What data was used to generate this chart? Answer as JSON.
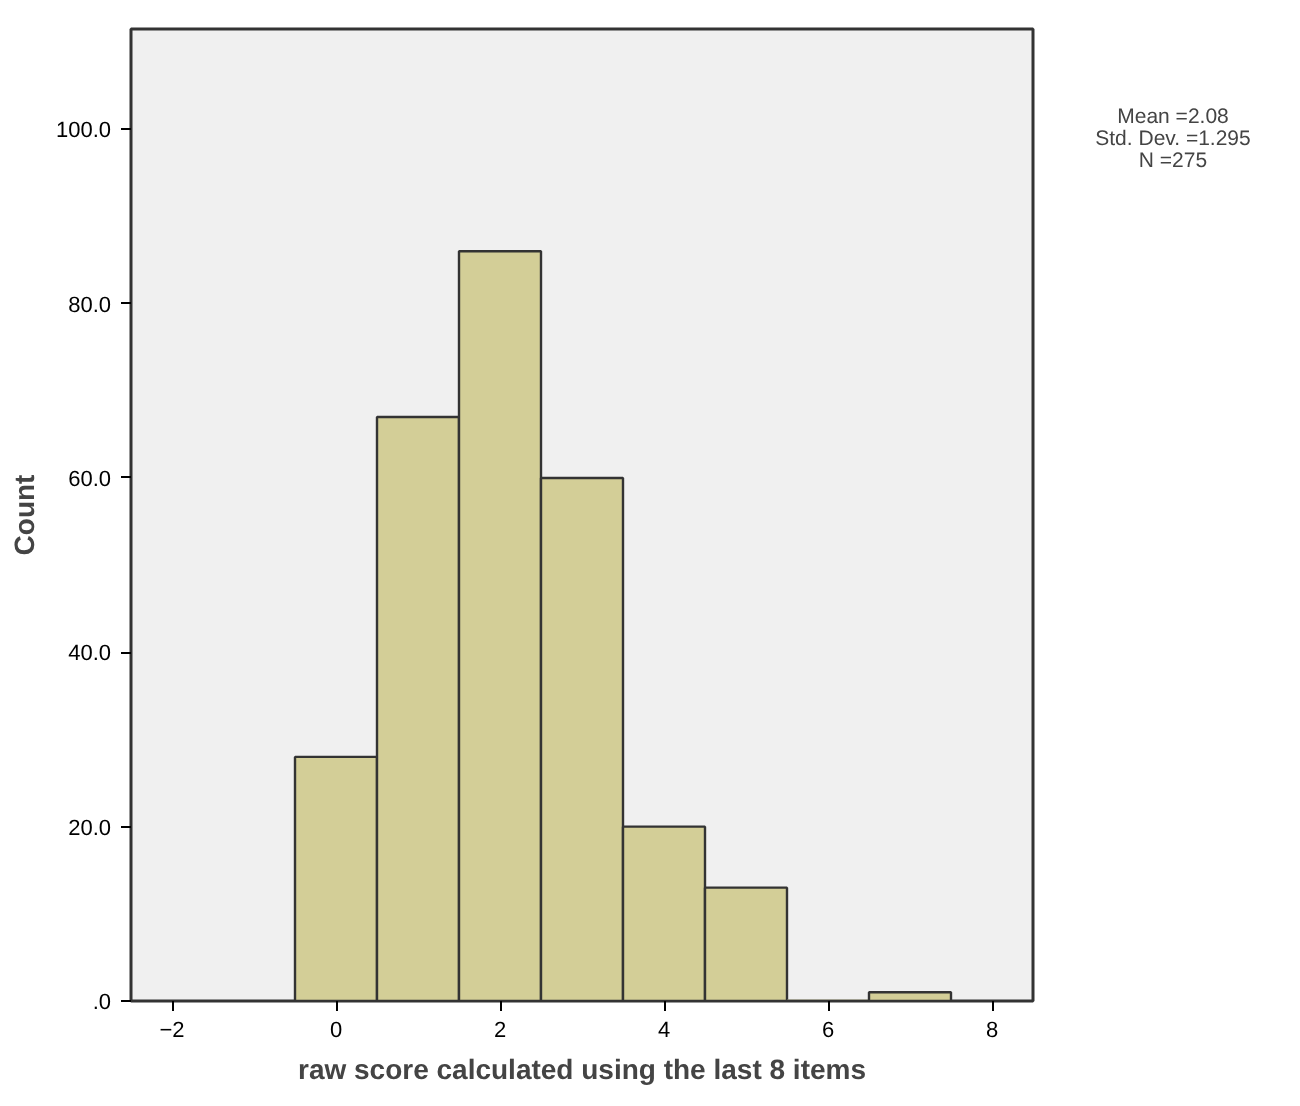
{
  "chart_data": {
    "type": "histogram",
    "xlabel": "raw score calculated using the last 8 items",
    "ylabel": "Count",
    "bins": [
      -0.5,
      0.5,
      1.5,
      2.5,
      3.5,
      4.5,
      5.5,
      6.5,
      7.5
    ],
    "values": [
      28,
      67,
      86,
      60,
      20,
      13,
      0,
      1
    ],
    "color": "#d3ce97",
    "xlim": [
      -2.5,
      8.5
    ],
    "ylim": [
      0,
      111.5
    ],
    "xticks": [
      -2,
      0,
      2,
      4,
      6,
      8
    ],
    "yticks": [
      {
        "value": 0,
        "label": ".0"
      },
      {
        "value": 20,
        "label": "20.0"
      },
      {
        "value": 40,
        "label": "40.0"
      },
      {
        "value": 60,
        "label": "60.0"
      },
      {
        "value": 80,
        "label": "80.0"
      },
      {
        "value": 100,
        "label": "100.0"
      }
    ],
    "annotations": [
      "Mean =2.08",
      "Std. Dev. =1.295",
      "N =275"
    ],
    "grid": false
  }
}
